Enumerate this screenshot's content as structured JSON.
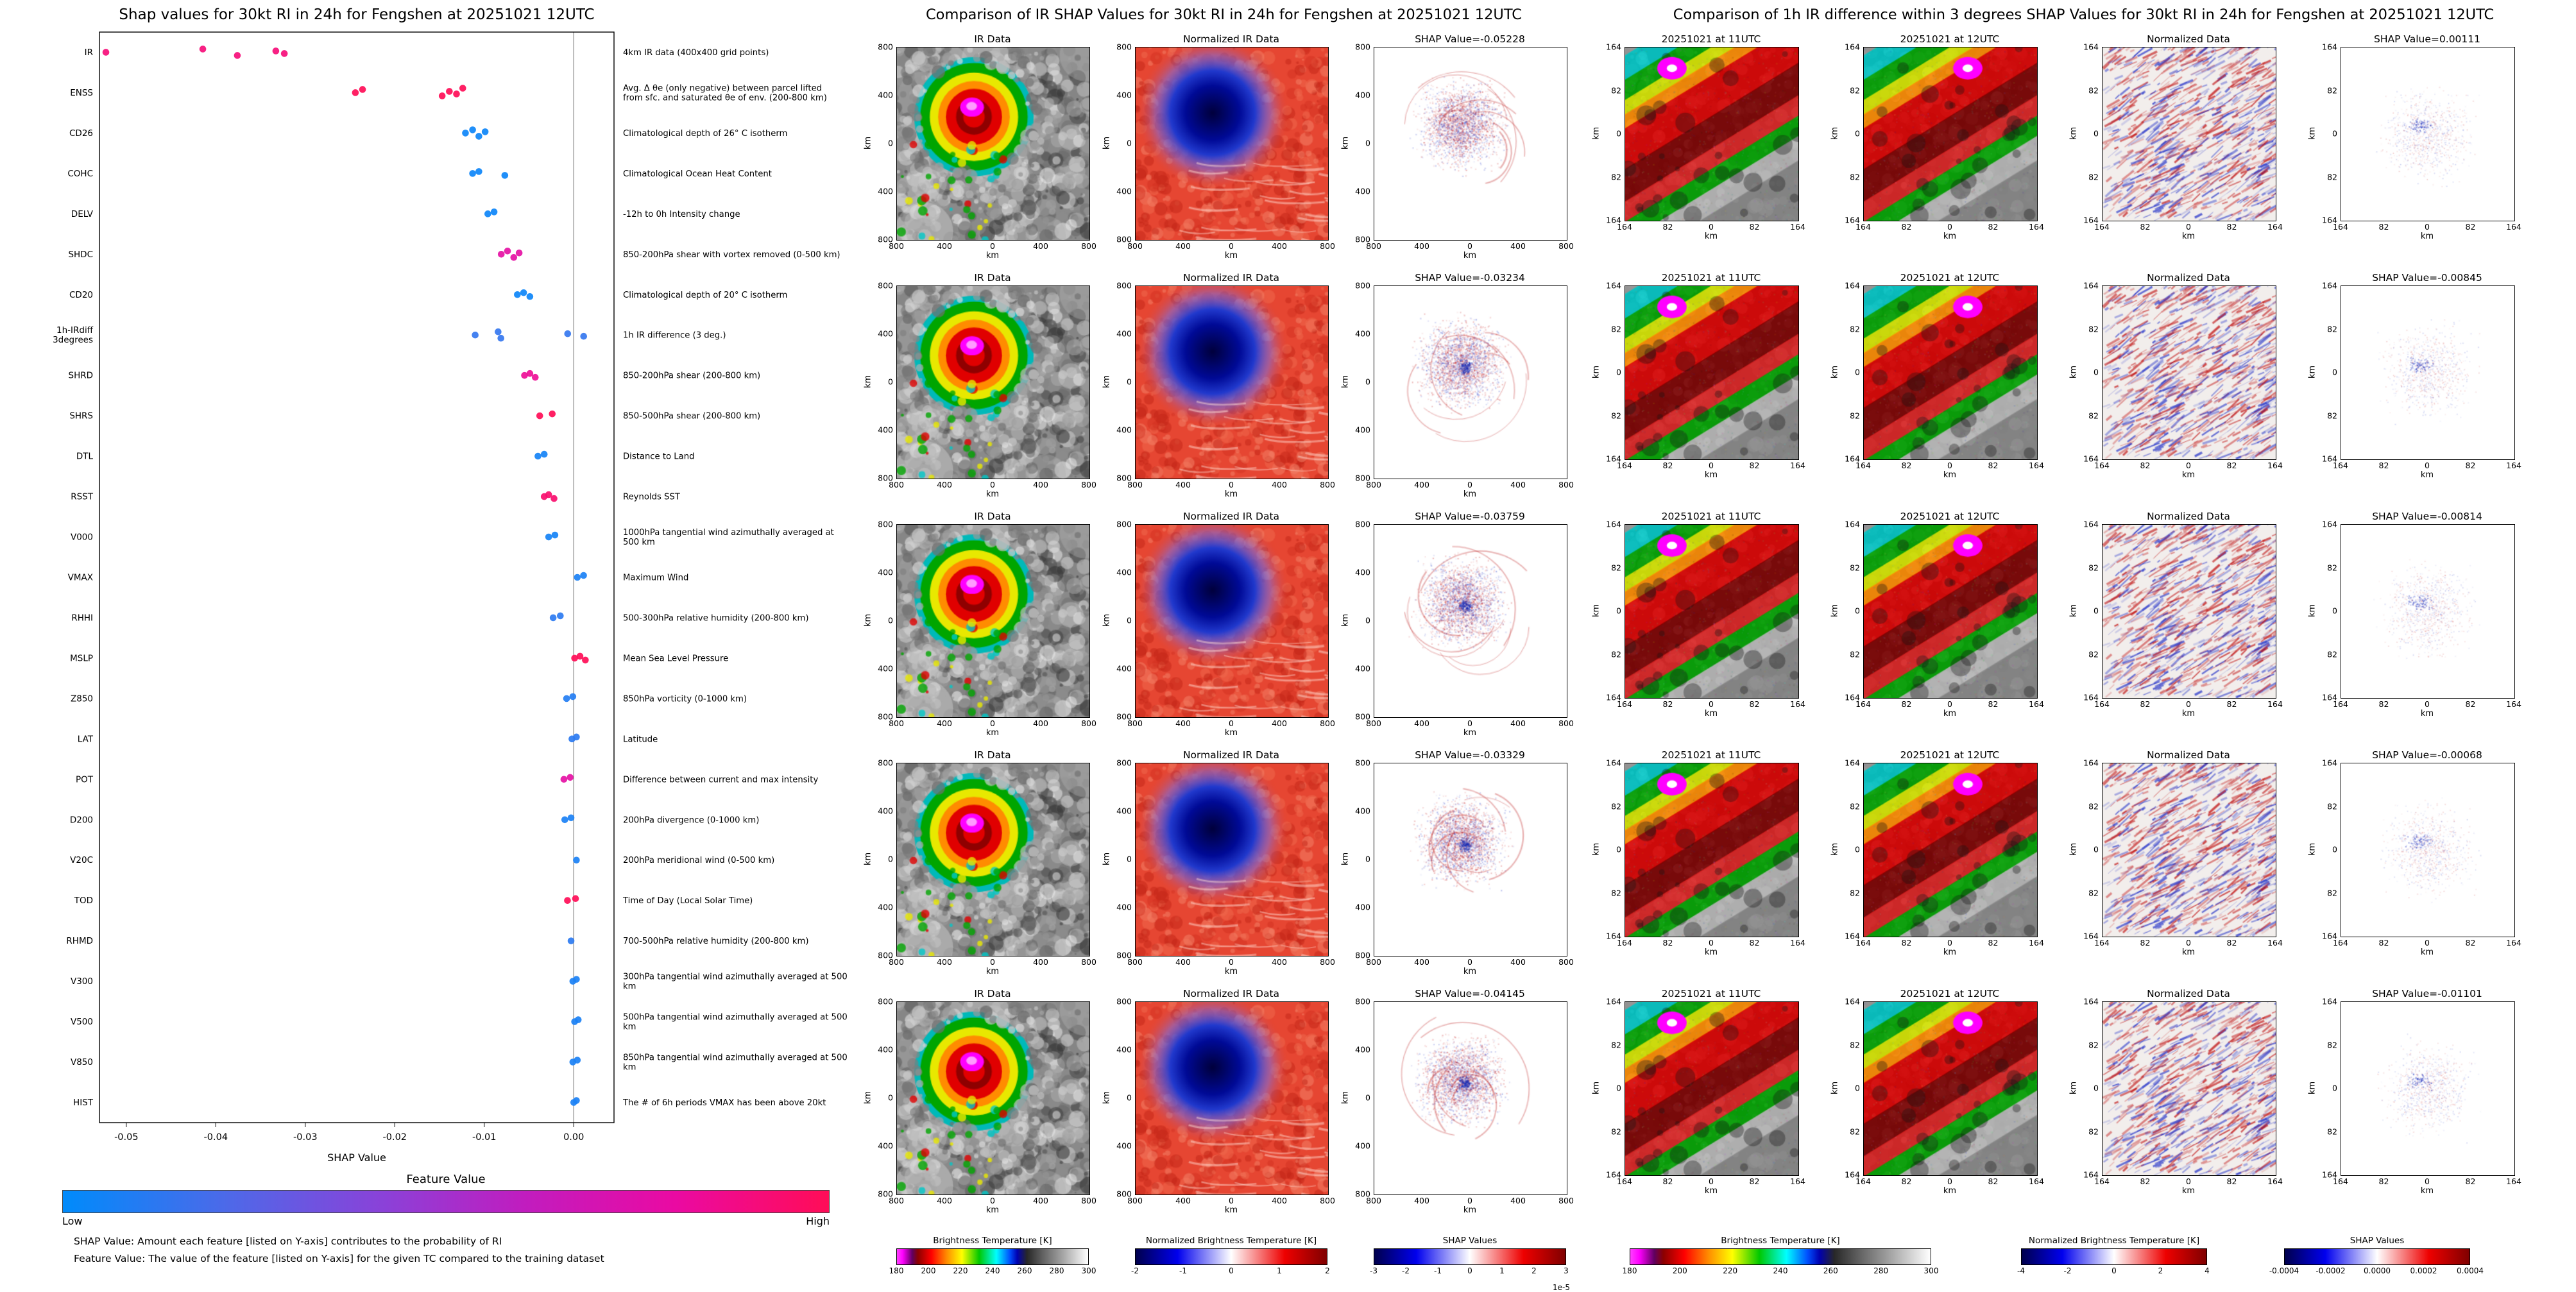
{
  "chart_data": [
    {
      "type": "scatter",
      "subtype": "shap-beeswarm",
      "title": "Shap values for 30kt RI in 24h for Fengshen at 20251021 12UTC",
      "xlabel": "SHAP Value",
      "xlim": [
        -0.053,
        0.0045
      ],
      "x_ticks": [
        "-0.05",
        "-0.04",
        "-0.03",
        "-0.02",
        "-0.01",
        "0.00"
      ],
      "colorbar": {
        "title": "Feature Value",
        "low": "Low",
        "high": "High",
        "low_color": "#008bfb",
        "high_color": "#ff0d57"
      },
      "footnotes": [
        "SHAP Value: Amount each feature [listed on Y-axis] contributes to the probability of RI",
        "Feature Value: The value of the feature [listed on Y-axis] for the given TC compared to the training dataset"
      ],
      "features": [
        {
          "n": "IR",
          "d": "4km IR data (400x400 grid points)",
          "s": [
            -0.05228,
            -0.04145,
            -0.03759,
            -0.03329,
            -0.03234
          ],
          "v": 0.88
        },
        {
          "n": "ENSS",
          "d": "Avg. Δ θe (only negative) between parcel lifted from sfc. and saturated θe of env. (200-800 km)",
          "s": [
            -0.0244,
            -0.0236,
            -0.0147,
            -0.0139,
            -0.0131,
            -0.0124
          ],
          "v": 1.0
        },
        {
          "n": "CD26",
          "d": "Climatological depth of 26° C isotherm",
          "s": [
            -0.0121,
            -0.0113,
            -0.0106,
            -0.0099
          ],
          "v": 0.03
        },
        {
          "n": "COHC",
          "d": "Climatological Ocean Heat Content",
          "s": [
            -0.0113,
            -0.0106,
            -0.0077
          ],
          "v": 0.03
        },
        {
          "n": "DELV",
          "d": "-12h to 0h Intensity change",
          "s": [
            -0.0096,
            -0.0089
          ],
          "v": 0.03
        },
        {
          "n": "SHDC",
          "d": "850-200hPa shear with vortex removed (0-500 km)",
          "s": [
            -0.0081,
            -0.0074,
            -0.0067,
            -0.0061
          ],
          "v": 0.72
        },
        {
          "n": "CD20",
          "d": "Climatological depth of 20° C isotherm",
          "s": [
            -0.0063,
            -0.0056,
            -0.0049
          ],
          "v": 0.03
        },
        {
          "n": "1h-IRdiff",
          "n2": "3degrees",
          "d": "1h IR difference (3 deg.)",
          "s": [
            -0.01101,
            -0.00845,
            -0.00814,
            -0.00068,
            0.00111
          ],
          "v": 0.12
        },
        {
          "n": "SHRD",
          "d": "850-200hPa shear (200-800 km)",
          "s": [
            -0.0055,
            -0.0049,
            -0.0043
          ],
          "v": 0.78
        },
        {
          "n": "SHRS",
          "d": "850-500hPa shear (200-800 km)",
          "s": [
            -0.0038,
            -0.0024
          ],
          "v": 1.0
        },
        {
          "n": "DTL",
          "d": "Distance to Land",
          "s": [
            -0.004,
            -0.0033
          ],
          "v": 0.05
        },
        {
          "n": "RSST",
          "d": "Reynolds SST",
          "s": [
            -0.0033,
            -0.0028,
            -0.0022
          ],
          "v": 0.92
        },
        {
          "n": "V000",
          "d": "1000hPa tangential wind azimuthally averaged at 500 km",
          "s": [
            -0.0028,
            -0.0021
          ],
          "v": 0.05
        },
        {
          "n": "VMAX",
          "d": "Maximum Wind",
          "s": [
            0.0004,
            0.0011
          ],
          "v": 0.06
        },
        {
          "n": "RHHI",
          "d": "500-300hPa relative humidity (200-800 km)",
          "s": [
            -0.0023,
            -0.0015
          ],
          "v": 0.1
        },
        {
          "n": "MSLP",
          "d": "Mean Sea Level Pressure",
          "s": [
            0.0001,
            0.0007,
            0.0013
          ],
          "v": 1.0
        },
        {
          "n": "Z850",
          "d": "850hPa vorticity (0-1000 km)",
          "s": [
            -0.0008,
            -0.0001
          ],
          "v": 0.08
        },
        {
          "n": "LAT",
          "d": "Latitude",
          "s": [
            -0.0002,
            0.0003
          ],
          "v": 0.1
        },
        {
          "n": "POT",
          "d": "Difference between current and max intensity",
          "s": [
            -0.0011,
            -0.0004
          ],
          "v": 0.72
        },
        {
          "n": "D200",
          "d": "200hPa divergence (0-1000 km)",
          "s": [
            -0.001,
            -0.0003
          ],
          "v": 0.06
        },
        {
          "n": "V20C",
          "d": "200hPa meridional wind (0-500 km)",
          "s": [
            0.0003
          ],
          "v": 0.06
        },
        {
          "n": "TOD",
          "d": "Time of Day (Local Solar Time)",
          "s": [
            -0.0007,
            0.0002
          ],
          "v": 1.0
        },
        {
          "n": "RHMD",
          "d": "700-500hPa relative humidity (200-800 km)",
          "s": [
            -0.0003
          ],
          "v": 0.1
        },
        {
          "n": "V300",
          "d": "300hPa tangential wind azimuthally averaged at 500 km",
          "s": [
            -0.0001,
            0.0003
          ],
          "v": 0.06
        },
        {
          "n": "V500",
          "d": "500hPa tangential wind azimuthally averaged at 500 km",
          "s": [
            0.0001,
            0.0005
          ],
          "v": 0.06
        },
        {
          "n": "V850",
          "d": "850hPa tangential wind azimuthally averaged at 500 km",
          "s": [
            -0.0001,
            0.0004
          ],
          "v": 0.06
        },
        {
          "n": "HIST",
          "d": "The # of 6h periods VMAX has been above 20kt",
          "s": [
            0.0,
            0.0003
          ],
          "v": 0.06
        }
      ]
    },
    {
      "type": "heatmap",
      "subtype": "ir-shap-comparison",
      "title": "Comparison of IR SHAP Values for 30kt RI in 24h for Fengshen at 20251021 12UTC",
      "columns": [
        {
          "title": "IR Data",
          "image": "ir"
        },
        {
          "title": "Normalized IR Data",
          "image": "norm_ir"
        },
        {
          "image": "shap_map"
        }
      ],
      "rows": [
        {
          "title": "SHAP Value=-0.05228",
          "shap_value": -0.05228
        },
        {
          "title": "SHAP Value=-0.03234",
          "shap_value": -0.03234
        },
        {
          "title": "SHAP Value=-0.03759",
          "shap_value": -0.03759
        },
        {
          "title": "SHAP Value=-0.03329",
          "shap_value": -0.03329
        },
        {
          "title": "SHAP Value=-0.04145",
          "shap_value": -0.04145
        }
      ],
      "axis": {
        "label": "km",
        "ticks": [
          "800",
          "400",
          "0",
          "400",
          "800"
        ]
      },
      "colorbars": [
        {
          "label": "Brightness Temperature [K]",
          "ticks": [
            "180",
            "200",
            "220",
            "240",
            "260",
            "280",
            "300"
          ],
          "gradient": "ir"
        },
        {
          "label": "Normalized Brightness Temperature [K]",
          "ticks": [
            "-2",
            "-1",
            "0",
            "1",
            "2"
          ],
          "gradient": "seismic"
        },
        {
          "label": "SHAP Values",
          "ticks": [
            "-3",
            "-2",
            "-1",
            "0",
            "1",
            "2",
            "3"
          ],
          "gradient": "seismic",
          "scale": "1e-5"
        }
      ]
    },
    {
      "type": "heatmap",
      "subtype": "ir-difference-shap-comparison",
      "title": "Comparison of 1h IR difference within 3 degrees SHAP Values for 30kt RI in 24h for Fengshen at 20251021 12UTC",
      "columns": [
        {
          "title": "20251021 at 11UTC",
          "image": "zoom_ir_a"
        },
        {
          "title": "20251021 at 12UTC",
          "image": "zoom_ir_b"
        },
        {
          "title": "Normalized Data",
          "image": "zoom_norm"
        },
        {
          "image": "zoom_shap"
        }
      ],
      "rows": [
        {
          "title": "SHAP Value=0.00111",
          "shap_value": 0.00111
        },
        {
          "title": "SHAP Value=-0.00845",
          "shap_value": -0.00845
        },
        {
          "title": "SHAP Value=-0.00814",
          "shap_value": -0.00814
        },
        {
          "title": "SHAP Value=-0.00068",
          "shap_value": -0.00068
        },
        {
          "title": "SHAP Value=-0.01101",
          "shap_value": -0.01101
        }
      ],
      "axis": {
        "label": "km",
        "ticks": [
          "164",
          "82",
          "0",
          "82",
          "164"
        ]
      },
      "colorbars": [
        {
          "label": "Brightness Temperature [K]",
          "ticks": [
            "180",
            "200",
            "220",
            "240",
            "260",
            "280",
            "300"
          ],
          "gradient": "ir"
        },
        {
          "label": "Normalized Brightness Temperature [K]",
          "ticks": [
            "-4",
            "-2",
            "0",
            "2",
            "4"
          ],
          "gradient": "seismic"
        },
        {
          "label": "SHAP Values",
          "ticks": [
            "-0.0004",
            "-0.0002",
            "0.0000",
            "0.0002",
            "0.0004"
          ],
          "gradient": "seismic"
        }
      ]
    }
  ]
}
